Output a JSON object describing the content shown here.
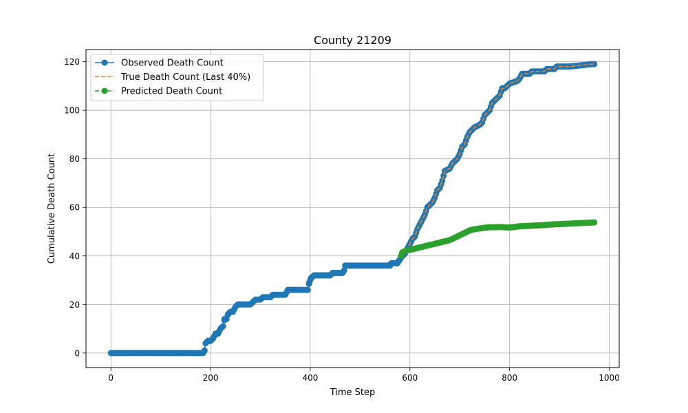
{
  "chart_data": {
    "type": "line",
    "title": "County 21209",
    "xlabel": "Time Step",
    "ylabel": "Cumulative Death Count",
    "xlim": [
      -50,
      1020
    ],
    "ylim": [
      -6,
      125
    ],
    "xticks": [
      0,
      200,
      400,
      600,
      800,
      1000
    ],
    "yticks": [
      0,
      20,
      40,
      60,
      80,
      100,
      120
    ],
    "grid": true,
    "legend_position": "top-left",
    "series": [
      {
        "name": "Observed Death Count",
        "color": "#1f77b4",
        "style": "solid-with-markers",
        "points": [
          [
            0,
            0
          ],
          [
            100,
            0
          ],
          [
            185,
            0
          ],
          [
            188,
            1
          ],
          [
            190,
            4
          ],
          [
            195,
            5
          ],
          [
            200,
            5
          ],
          [
            205,
            6
          ],
          [
            210,
            8
          ],
          [
            215,
            8
          ],
          [
            220,
            10
          ],
          [
            225,
            11
          ],
          [
            228,
            14
          ],
          [
            232,
            14
          ],
          [
            235,
            16
          ],
          [
            240,
            17
          ],
          [
            245,
            17
          ],
          [
            250,
            19
          ],
          [
            255,
            20
          ],
          [
            270,
            20
          ],
          [
            280,
            20
          ],
          [
            285,
            21
          ],
          [
            290,
            22
          ],
          [
            300,
            22
          ],
          [
            305,
            23
          ],
          [
            320,
            23
          ],
          [
            325,
            24
          ],
          [
            350,
            24
          ],
          [
            355,
            26
          ],
          [
            395,
            26
          ],
          [
            398,
            29
          ],
          [
            402,
            31
          ],
          [
            408,
            32
          ],
          [
            440,
            32
          ],
          [
            445,
            33
          ],
          [
            465,
            33
          ],
          [
            468,
            34
          ],
          [
            470,
            36
          ],
          [
            520,
            36
          ],
          [
            560,
            36
          ],
          [
            563,
            37
          ],
          [
            575,
            37
          ],
          [
            578,
            38
          ],
          [
            585,
            40
          ],
          [
            590,
            41
          ],
          [
            595,
            43
          ],
          [
            600,
            45
          ],
          [
            605,
            47
          ],
          [
            610,
            48
          ],
          [
            615,
            51
          ],
          [
            620,
            53
          ],
          [
            625,
            55
          ],
          [
            630,
            57
          ],
          [
            635,
            60
          ],
          [
            640,
            61
          ],
          [
            645,
            62
          ],
          [
            650,
            64
          ],
          [
            655,
            67
          ],
          [
            660,
            68
          ],
          [
            665,
            71
          ],
          [
            670,
            75
          ],
          [
            680,
            76
          ],
          [
            685,
            78
          ],
          [
            690,
            79
          ],
          [
            695,
            80
          ],
          [
            700,
            82
          ],
          [
            705,
            85
          ],
          [
            710,
            86
          ],
          [
            715,
            89
          ],
          [
            720,
            91
          ],
          [
            725,
            92
          ],
          [
            730,
            93
          ],
          [
            740,
            94
          ],
          [
            745,
            95
          ],
          [
            750,
            98
          ],
          [
            755,
            99
          ],
          [
            760,
            100
          ],
          [
            765,
            103
          ],
          [
            770,
            104
          ],
          [
            775,
            105
          ],
          [
            780,
            106
          ],
          [
            785,
            109
          ],
          [
            790,
            109
          ],
          [
            795,
            110
          ],
          [
            800,
            111
          ],
          [
            815,
            112
          ],
          [
            820,
            113
          ],
          [
            825,
            115
          ],
          [
            840,
            115
          ],
          [
            845,
            116
          ],
          [
            870,
            116
          ],
          [
            875,
            117
          ],
          [
            890,
            117
          ],
          [
            895,
            118
          ],
          [
            920,
            118
          ],
          [
            965,
            119
          ],
          [
            970,
            119
          ]
        ]
      },
      {
        "name": "True Death Count (Last 40%)",
        "color": "#ff7f0e",
        "style": "dashed",
        "points": [
          [
            585,
            40
          ],
          [
            590,
            41
          ],
          [
            595,
            43
          ],
          [
            600,
            45
          ],
          [
            605,
            47
          ],
          [
            610,
            48
          ],
          [
            615,
            51
          ],
          [
            620,
            53
          ],
          [
            625,
            55
          ],
          [
            630,
            57
          ],
          [
            635,
            60
          ],
          [
            640,
            61
          ],
          [
            645,
            62
          ],
          [
            650,
            64
          ],
          [
            655,
            67
          ],
          [
            660,
            68
          ],
          [
            665,
            71
          ],
          [
            670,
            75
          ],
          [
            680,
            76
          ],
          [
            685,
            78
          ],
          [
            690,
            79
          ],
          [
            695,
            80
          ],
          [
            700,
            82
          ],
          [
            705,
            85
          ],
          [
            710,
            86
          ],
          [
            715,
            89
          ],
          [
            720,
            91
          ],
          [
            725,
            92
          ],
          [
            730,
            93
          ],
          [
            740,
            94
          ],
          [
            745,
            95
          ],
          [
            750,
            98
          ],
          [
            755,
            99
          ],
          [
            760,
            100
          ],
          [
            765,
            103
          ],
          [
            770,
            104
          ],
          [
            775,
            105
          ],
          [
            780,
            106
          ],
          [
            785,
            109
          ],
          [
            790,
            109
          ],
          [
            795,
            110
          ],
          [
            800,
            111
          ],
          [
            815,
            112
          ],
          [
            820,
            113
          ],
          [
            825,
            115
          ],
          [
            840,
            115
          ],
          [
            845,
            116
          ],
          [
            870,
            116
          ],
          [
            875,
            117
          ],
          [
            890,
            117
          ],
          [
            895,
            118
          ],
          [
            920,
            118
          ],
          [
            965,
            119
          ],
          [
            970,
            119
          ]
        ]
      },
      {
        "name": "Predicted Death Count",
        "color": "#2ca02c",
        "style": "dashed-with-markers",
        "points": [
          [
            582,
            40
          ],
          [
            585,
            41.5
          ],
          [
            590,
            42
          ],
          [
            600,
            42.5
          ],
          [
            610,
            43
          ],
          [
            620,
            43.5
          ],
          [
            630,
            44
          ],
          [
            640,
            44.5
          ],
          [
            650,
            45
          ],
          [
            660,
            45.5
          ],
          [
            670,
            46
          ],
          [
            680,
            46.5
          ],
          [
            690,
            47.5
          ],
          [
            700,
            48.5
          ],
          [
            710,
            49.5
          ],
          [
            720,
            50.5
          ],
          [
            730,
            51
          ],
          [
            740,
            51.3
          ],
          [
            750,
            51.6
          ],
          [
            760,
            51.8
          ],
          [
            770,
            51.8
          ],
          [
            780,
            51.9
          ],
          [
            790,
            51.8
          ],
          [
            800,
            51.7
          ],
          [
            810,
            51.9
          ],
          [
            820,
            52.2
          ],
          [
            830,
            52.3
          ],
          [
            840,
            52.4
          ],
          [
            850,
            52.5
          ],
          [
            860,
            52.6
          ],
          [
            870,
            52.7
          ],
          [
            880,
            52.9
          ],
          [
            890,
            53
          ],
          [
            900,
            53.1
          ],
          [
            910,
            53.2
          ],
          [
            920,
            53.3
          ],
          [
            930,
            53.4
          ],
          [
            940,
            53.5
          ],
          [
            950,
            53.6
          ],
          [
            960,
            53.7
          ],
          [
            970,
            53.8
          ]
        ]
      }
    ]
  }
}
